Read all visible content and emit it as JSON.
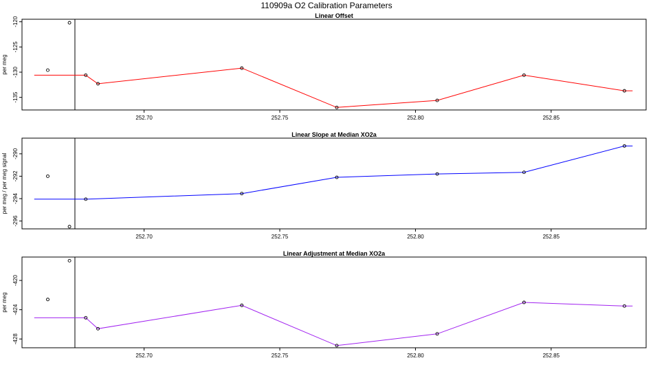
{
  "figure": {
    "title": "110909a   O2 Calibration Parameters"
  },
  "chart_data": [
    {
      "type": "line",
      "title": "Linear Offset",
      "xlabel": "",
      "ylabel": "per meg",
      "xlim": [
        252.655,
        252.885
      ],
      "ylim": [
        -137.5,
        -119.5
      ],
      "xticks": [
        252.7,
        252.75,
        252.8,
        252.85
      ],
      "xtick_labels": [
        "252.70",
        "252.75",
        "252.80",
        "252.85"
      ],
      "yticks": [
        -120,
        -125,
        -130,
        -135
      ],
      "ytick_labels": [
        "-120",
        "-125",
        "-130",
        "-135"
      ],
      "line_color": "#ff0000",
      "divider_x": 252.6745,
      "outside_points": [
        {
          "x": 252.6645,
          "y": -129.6
        },
        {
          "x": 252.6725,
          "y": -120.2
        }
      ],
      "series": [
        {
          "x": [
            252.6595,
            252.6785,
            252.683,
            252.736,
            252.771,
            252.808,
            252.84,
            252.877,
            252.88
          ],
          "y": [
            -130.6,
            -130.6,
            -132.3,
            -129.2,
            -137.0,
            -135.6,
            -130.6,
            -133.7,
            -133.7
          ],
          "markers": [
            false,
            true,
            true,
            true,
            true,
            true,
            true,
            true,
            false
          ]
        }
      ]
    },
    {
      "type": "line",
      "title": "Linear Slope at Median XO2a",
      "xlabel": "",
      "ylabel": "per meg / per meg signal",
      "xlim": [
        252.655,
        252.885
      ],
      "ylim": [
        -296.7,
        -288.6
      ],
      "xticks": [
        252.7,
        252.75,
        252.8,
        252.85
      ],
      "xtick_labels": [
        "252.70",
        "252.75",
        "252.80",
        "252.85"
      ],
      "yticks": [
        -290,
        -292,
        -294,
        -296
      ],
      "ytick_labels": [
        "-290",
        "-292",
        "-294",
        "-296"
      ],
      "line_color": "#0000ff",
      "divider_x": 252.6745,
      "outside_points": [
        {
          "x": 252.6645,
          "y": -292.0
        },
        {
          "x": 252.6725,
          "y": -296.5
        }
      ],
      "series": [
        {
          "x": [
            252.6595,
            252.6785,
            252.736,
            252.771,
            252.808,
            252.84,
            252.877,
            252.88
          ],
          "y": [
            -294.05,
            -294.05,
            -293.55,
            -292.1,
            -291.8,
            -291.65,
            -289.3,
            -289.3
          ],
          "markers": [
            false,
            true,
            true,
            true,
            true,
            true,
            true,
            false
          ]
        }
      ]
    },
    {
      "type": "line",
      "title": "Linear Adjustment at Median XO2a",
      "xlabel": "",
      "ylabel": "per meg",
      "xlim": [
        252.655,
        252.885
      ],
      "ylim": [
        -429.2,
        -416.8
      ],
      "xticks": [
        252.7,
        252.75,
        252.8,
        252.85
      ],
      "xtick_labels": [
        "252.70",
        "252.75",
        "252.80",
        "252.85"
      ],
      "yticks": [
        -420,
        -424,
        -428
      ],
      "ytick_labels": [
        "-420",
        "-424",
        "-428"
      ],
      "line_color": "#a020f0",
      "divider_x": 252.6745,
      "outside_points": [
        {
          "x": 252.6645,
          "y": -422.6
        },
        {
          "x": 252.6725,
          "y": -417.3
        }
      ],
      "series": [
        {
          "x": [
            252.6595,
            252.6785,
            252.683,
            252.736,
            252.771,
            252.808,
            252.84,
            252.877,
            252.88
          ],
          "y": [
            -425.1,
            -425.1,
            -426.6,
            -423.4,
            -428.9,
            -427.3,
            -423.0,
            -423.5,
            -423.5
          ],
          "markers": [
            false,
            true,
            true,
            true,
            true,
            true,
            true,
            true,
            false
          ]
        }
      ]
    }
  ]
}
